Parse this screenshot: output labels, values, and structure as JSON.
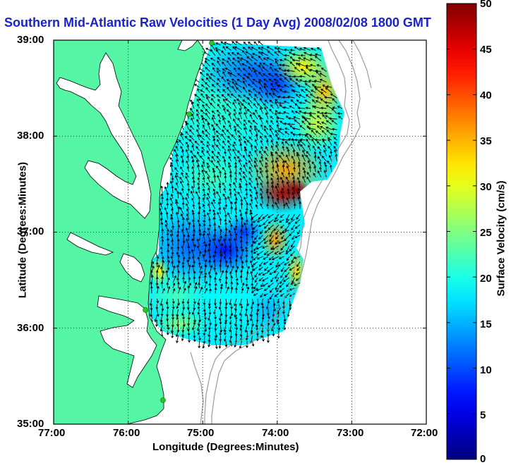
{
  "title": "Southern Mid-Atlantic Raw Velocities (1 Day Avg) 2008/02/08 1800 GMT",
  "map": {
    "xlabel": "Longitude (Degrees:Minutes)",
    "ylabel": "Latitude (Degrees:Minutes)",
    "lon_range": [
      -77,
      -72
    ],
    "lat_range": [
      35,
      39
    ],
    "x_ticks": [
      "77:00",
      "76:00",
      "75:00",
      "74:00",
      "73:00",
      "72:00"
    ],
    "y_ticks": [
      "39:00",
      "38:00",
      "37:00",
      "36:00",
      "35:00"
    ],
    "land_color": "#55f5a6",
    "station_color": "#22cc22"
  },
  "colorbar": {
    "label": "Surface Velocity (cm/s)",
    "min": 0,
    "max": 50,
    "ticks": [
      "50",
      "45",
      "40",
      "35",
      "30",
      "25",
      "20",
      "15",
      "10",
      "5",
      "0"
    ],
    "colormap": "jet"
  }
}
